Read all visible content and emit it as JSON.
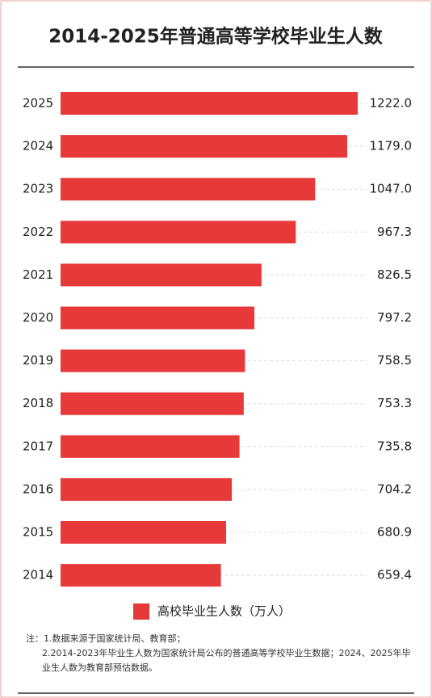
{
  "chart_data": {
    "type": "hbar",
    "title": "2014-2025年普通高等学校毕业生人数",
    "categories": [
      "2025",
      "2024",
      "2023",
      "2022",
      "2021",
      "2020",
      "2019",
      "2018",
      "2017",
      "2016",
      "2015",
      "2014"
    ],
    "series": [
      {
        "name": "高校毕业生人数（万人）",
        "color": "#e8393a",
        "values": [
          1222,
          1179,
          1047,
          967.3,
          826.5,
          797.2,
          758.5,
          753.3,
          735.8,
          704.2,
          680.9,
          659.4
        ],
        "value_labels": [
          "1222.0",
          "1179.0",
          "1047.0",
          "967.3",
          "826.5",
          "797.2",
          "758.5",
          "753.3",
          "735.8",
          "704.2",
          "680.9",
          "659.4"
        ]
      }
    ],
    "notes": [
      "注：1.数据来源于国家统计局、教育部；",
      "2.2014-2023年毕业生人数为国家统计局公布的普通高等学校毕业生数据；2024、2025年毕业生人数为教育部预估数据。"
    ]
  }
}
